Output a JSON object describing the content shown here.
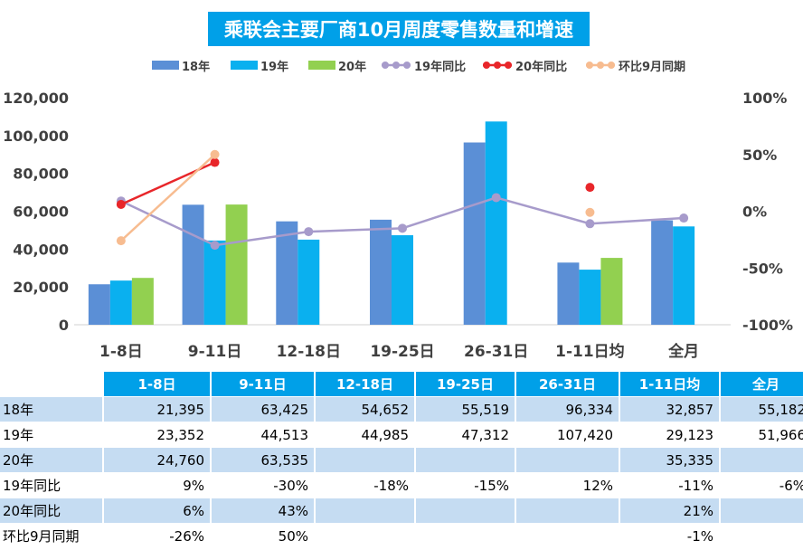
{
  "chart_data": {
    "type": "bar",
    "title": "乘联会主要厂商10月周度零售数量和增速",
    "categories": [
      "1-8日",
      "9-11日",
      "12-18日",
      "19-25日",
      "26-31日",
      "1-11日均",
      "全月"
    ],
    "series": [
      {
        "name": "18年",
        "kind": "bar",
        "color": "#5b8fd6",
        "values": [
          21395,
          63425,
          54652,
          55519,
          96334,
          32857,
          55182
        ]
      },
      {
        "name": "19年",
        "kind": "bar",
        "color": "#0ab0ef",
        "values": [
          23352,
          44513,
          44985,
          47312,
          107420,
          29123,
          51966
        ]
      },
      {
        "name": "20年",
        "kind": "bar",
        "color": "#92d050",
        "values": [
          24760,
          63535,
          null,
          null,
          null,
          35335,
          null
        ]
      },
      {
        "name": "19年同比",
        "kind": "line",
        "color": "#a79bcb",
        "values": [
          9,
          -30,
          -18,
          -15,
          12,
          -11,
          -6
        ]
      },
      {
        "name": "20年同比",
        "kind": "line",
        "color": "#e8262a",
        "values": [
          6,
          43,
          null,
          null,
          null,
          21,
          null
        ]
      },
      {
        "name": "环比9月同期",
        "kind": "line",
        "color": "#f7bc90",
        "values": [
          -26,
          50,
          null,
          null,
          null,
          -1,
          null
        ]
      }
    ],
    "ylim": [
      0,
      120000
    ],
    "yticks": [
      "0",
      "20,000",
      "40,000",
      "60,000",
      "80,000",
      "100,000",
      "120,000"
    ],
    "y2lim": [
      -100,
      100
    ],
    "y2ticks": [
      "-100%",
      "-50%",
      "0%",
      "50%",
      "100%"
    ],
    "legend_position": "top"
  },
  "table": {
    "headers": [
      "1-8日",
      "9-11日",
      "12-18日",
      "19-25日",
      "26-31日",
      "1-11日均",
      "全月"
    ],
    "rows": [
      {
        "label": "18年",
        "cells": [
          "21,395",
          "63,425",
          "54,652",
          "55,519",
          "96,334",
          "32,857",
          "55,182"
        ]
      },
      {
        "label": "19年",
        "cells": [
          "23,352",
          "44,513",
          "44,985",
          "47,312",
          "107,420",
          "29,123",
          "51,966"
        ]
      },
      {
        "label": "20年",
        "cells": [
          "24,760",
          "63,535",
          "",
          "",
          "",
          "35,335",
          ""
        ]
      },
      {
        "label": "19年同比",
        "cells": [
          "9%",
          "-30%",
          "-18%",
          "-15%",
          "12%",
          "-11%",
          "-6%"
        ]
      },
      {
        "label": "20年同比",
        "cells": [
          "6%",
          "43%",
          "",
          "",
          "",
          "21%",
          ""
        ]
      },
      {
        "label": "环比9月同期",
        "cells": [
          "-26%",
          "50%",
          "",
          "",
          "",
          "-1%",
          ""
        ]
      }
    ]
  }
}
